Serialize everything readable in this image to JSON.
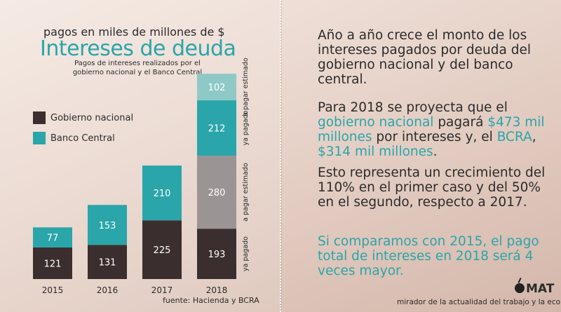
{
  "chart_data": {
    "type": "bar",
    "stacked": true,
    "kicker": "pagos en miles de millones de $",
    "title": "Intereses de deuda",
    "subtitle": "Pagos de intereses realizados por el gobierno nacional y el Banco Central",
    "categories": [
      "2015",
      "2016",
      "2017",
      "2018"
    ],
    "series": [
      {
        "name": "Gobierno nacional",
        "color": "#3a2f2e",
        "values": [
          121,
          131,
          225,
          193
        ]
      },
      {
        "name": "Gobierno nacional a pagar estimado",
        "color": "#9a9494",
        "values": [
          0,
          0,
          0,
          280
        ]
      },
      {
        "name": "Banco Central",
        "color": "#2aa5a9",
        "values": [
          77,
          153,
          210,
          212
        ]
      },
      {
        "name": "Banco Central a pagar estimado",
        "color": "#8fc9c7",
        "values": [
          0,
          0,
          0,
          102
        ]
      }
    ],
    "legend": [
      {
        "label": "Gobierno nacional",
        "color": "#3a2f2e"
      },
      {
        "label": "Banco Central",
        "color": "#2aa5a9"
      }
    ],
    "segment_labels": [
      {
        "text": "ya pagado",
        "series": 0
      },
      {
        "text": "a pagar estimado",
        "series": 1
      },
      {
        "text": "ya pagado",
        "series": 2
      },
      {
        "text": "a pagar estimado",
        "series": 3
      }
    ],
    "ylim": [
      0,
      790
    ],
    "grid": false,
    "legend_position": "left",
    "source": "fuente: Hacienda y BCRA"
  },
  "text": {
    "p1": "Año a año crece el monto de los intereses pagados por deuda del gobierno nacional y del banco central.",
    "p2_a": "Para 2018 se proyecta que el ",
    "p2_b": "gobierno nacional",
    "p2_c": " pagará ",
    "p2_d": "$473 mil millones",
    "p2_e": " por intereses y, el ",
    "p2_f": "BCRA",
    "p2_g": ", ",
    "p2_h": "$314 mil millones",
    "p2_i": ".",
    "p3": "Esto representa un crecimiento del 110% en el primer caso y del 50% en el segundo, respecto a 2017.",
    "p4": "Si comparamos con 2015, el pago total de intereses en 2018 será 4 veces mayor."
  },
  "brand": {
    "name": "MAT",
    "tagline": "mirador de la actualidad del trabajo y la econo"
  }
}
